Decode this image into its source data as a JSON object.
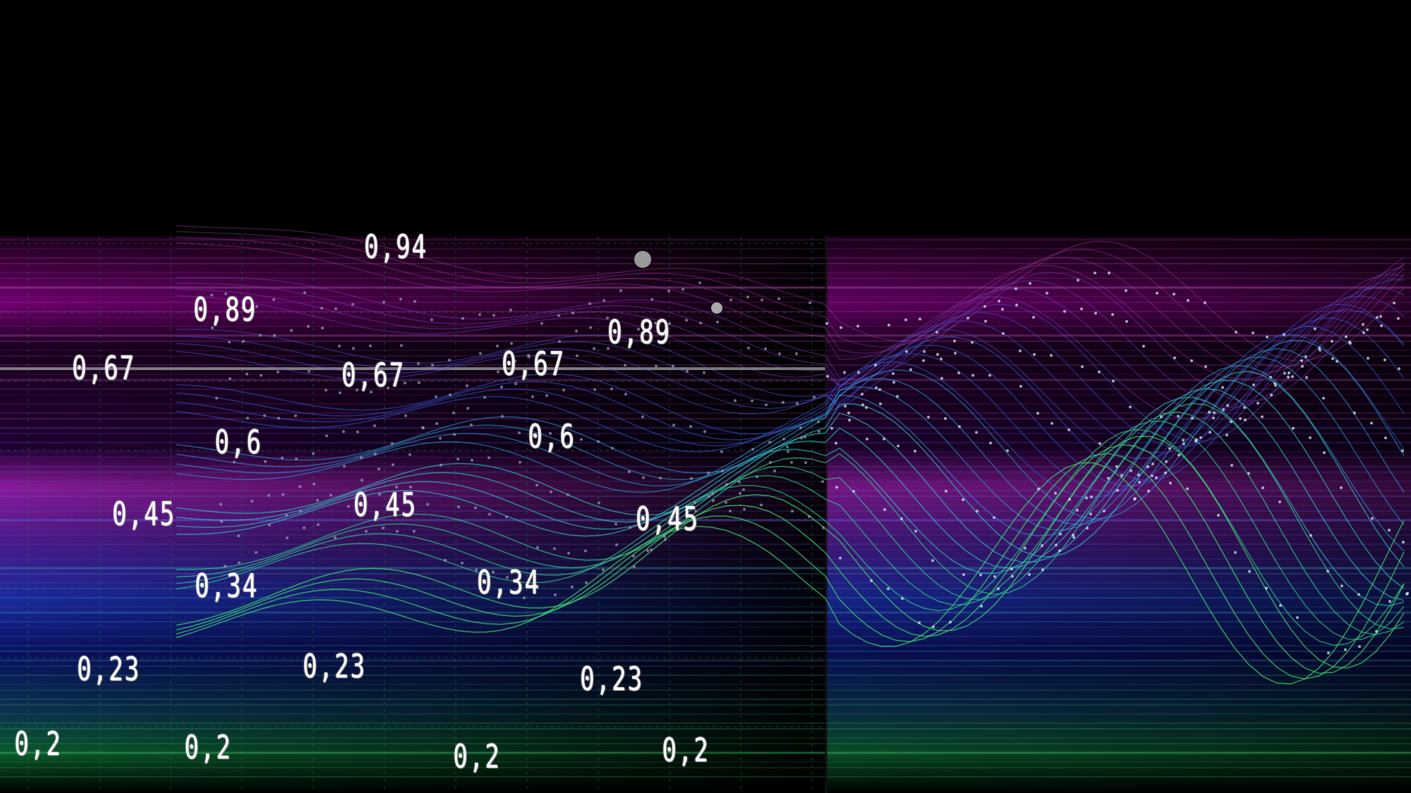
{
  "labels": [
    "0,94",
    "0,89",
    "0,89",
    "0,67",
    "0,67",
    "0,67",
    "0,6",
    "0,6",
    "0,45",
    "0,45",
    "0,45",
    "0,34",
    "0,34",
    "0,23",
    "0,23",
    "0,23",
    "0,2",
    "0,2",
    "0,2",
    "0,2"
  ],
  "colors": {
    "background": "#000000",
    "magenta": "#a020a0",
    "violet": "#5a2aa0",
    "blue": "#2a3ad0",
    "cyan": "#30d0e0",
    "green": "#30d070",
    "grid": "#2a8a4a"
  }
}
